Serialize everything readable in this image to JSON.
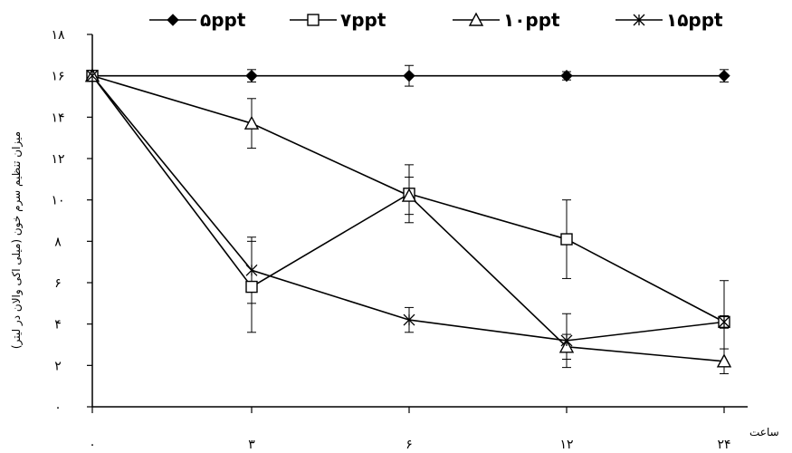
{
  "chart_data": {
    "type": "line",
    "title": "",
    "xlabel": "ساعت",
    "ylabel": "میزان تنظیم سرم خون (میلی اکی والان در لیتر)",
    "x_ticks": [
      "۰",
      "۳",
      "۶",
      "۱۲",
      "۲۴"
    ],
    "x_positions": [
      0,
      1,
      2,
      3,
      4
    ],
    "y_ticks": [
      "۰",
      "۲",
      "۴",
      "۶",
      "۸",
      "۱۰",
      "۱۲",
      "۱۴",
      "۱۶",
      "۱۸"
    ],
    "ylim": [
      0,
      18
    ],
    "grid": false,
    "legend_position": "top",
    "series": [
      {
        "name": "۵ppt",
        "marker": "diamond",
        "color": "#000000",
        "values": [
          16,
          16,
          16,
          16,
          16
        ],
        "errors": [
          0,
          0.3,
          0.5,
          0.2,
          0.3
        ]
      },
      {
        "name": "۷ppt",
        "marker": "open-square",
        "color": "#000000",
        "values": [
          16,
          5.8,
          10.3,
          8.1,
          4.1
        ],
        "errors": [
          0,
          2.2,
          1.4,
          1.9,
          2.0
        ]
      },
      {
        "name": "۱۰ppt",
        "marker": "open-triangle",
        "color": "#000000",
        "values": [
          16,
          13.7,
          10.2,
          2.9,
          2.2
        ],
        "errors": [
          0,
          1.2,
          0.9,
          0.6,
          0.6
        ]
      },
      {
        "name": "۱۵ppt",
        "marker": "star",
        "color": "#000000",
        "values": [
          16,
          6.6,
          4.2,
          3.2,
          4.1
        ],
        "errors": [
          0,
          1.6,
          0.6,
          1.3,
          0.3
        ]
      }
    ]
  }
}
